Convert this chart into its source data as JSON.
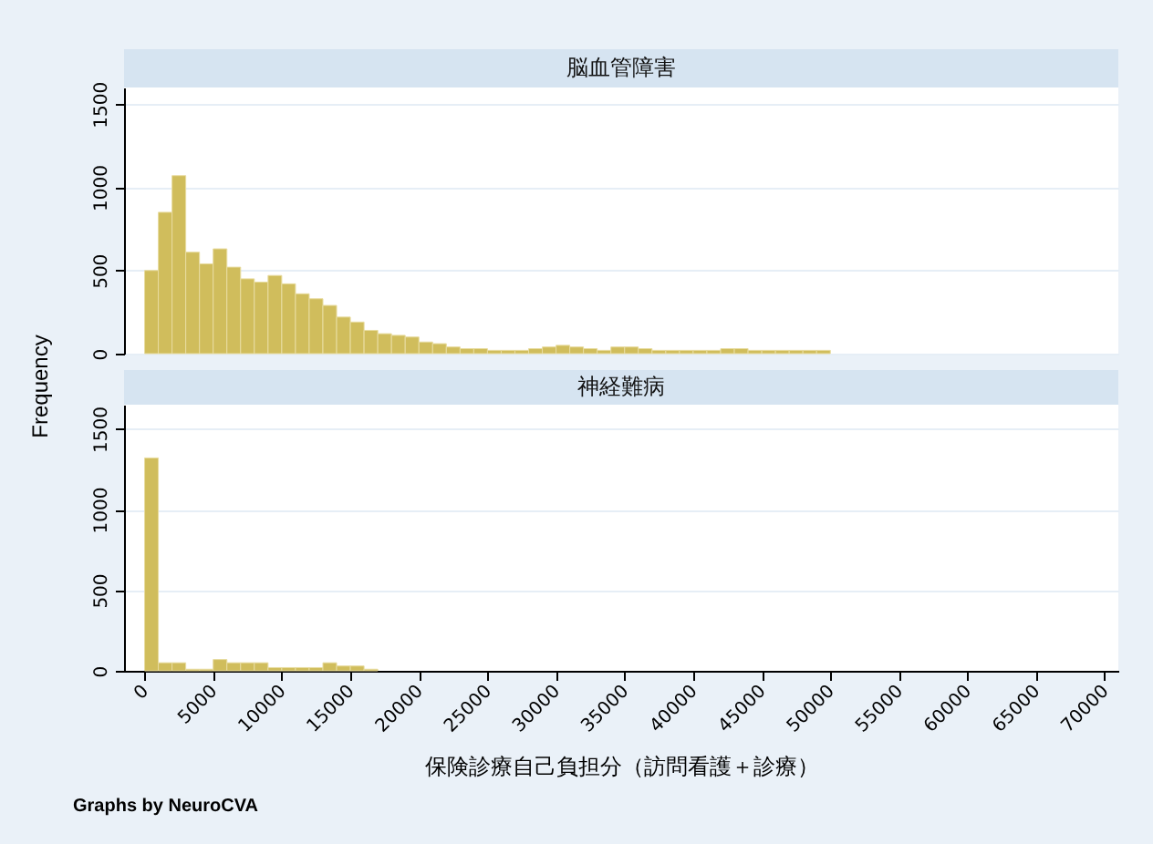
{
  "chart_data": [
    {
      "type": "histogram",
      "title": "脳血管障害",
      "ylabel": "Frequency",
      "color": "#d0bd5c",
      "bins": [
        0,
        1000,
        2000,
        3000,
        4000,
        5000,
        6000,
        7000,
        8000,
        9000,
        10000,
        11000,
        12000,
        13000,
        14000,
        15000,
        16000,
        17000,
        18000,
        19000,
        20000,
        21000,
        22000,
        23000,
        24000,
        25000,
        26000,
        27000,
        28000,
        29000,
        30000,
        31000,
        32000,
        33000,
        34000,
        35000,
        36000,
        37000,
        38000,
        39000,
        40000,
        41000,
        42000,
        43000,
        44000,
        45000,
        46000,
        47000,
        48000,
        49000,
        50000
      ],
      "values": [
        500,
        850,
        1070,
        610,
        540,
        630,
        520,
        450,
        430,
        470,
        420,
        360,
        330,
        290,
        220,
        190,
        140,
        120,
        110,
        100,
        70,
        60,
        40,
        30,
        30,
        20,
        20,
        20,
        30,
        40,
        50,
        40,
        30,
        20,
        40,
        40,
        30,
        20,
        20,
        20,
        20,
        20,
        30,
        30,
        20,
        20,
        20,
        20,
        20,
        20
      ],
      "xlim": [
        -1500,
        71000
      ],
      "ylim": [
        0,
        1600
      ],
      "yticks": [
        0,
        500,
        1000,
        1500
      ],
      "grid": "y",
      "tick_labels": "y"
    },
    {
      "type": "histogram",
      "title": "神経難病",
      "xlabel": "保険診療自己負担分（訪問看護＋診療）",
      "color": "#d0bd5c",
      "bins": [
        0,
        1000,
        2000,
        3000,
        4000,
        5000,
        6000,
        7000,
        8000,
        9000,
        10000,
        11000,
        12000,
        13000,
        14000,
        15000,
        16000,
        17000
      ],
      "values": [
        1320,
        50,
        50,
        10,
        10,
        70,
        50,
        50,
        50,
        20,
        20,
        20,
        20,
        50,
        30,
        30,
        10
      ],
      "xlim": [
        -1500,
        71000
      ],
      "xticks": [
        0,
        5000,
        10000,
        15000,
        20000,
        25000,
        30000,
        35000,
        40000,
        45000,
        50000,
        55000,
        60000,
        65000,
        70000
      ],
      "ylim": [
        0,
        1650
      ],
      "yticks": [
        0,
        500,
        1000,
        1500
      ],
      "grid": "y",
      "annotations": [
        "Graphs by NeuroCVA"
      ]
    }
  ]
}
